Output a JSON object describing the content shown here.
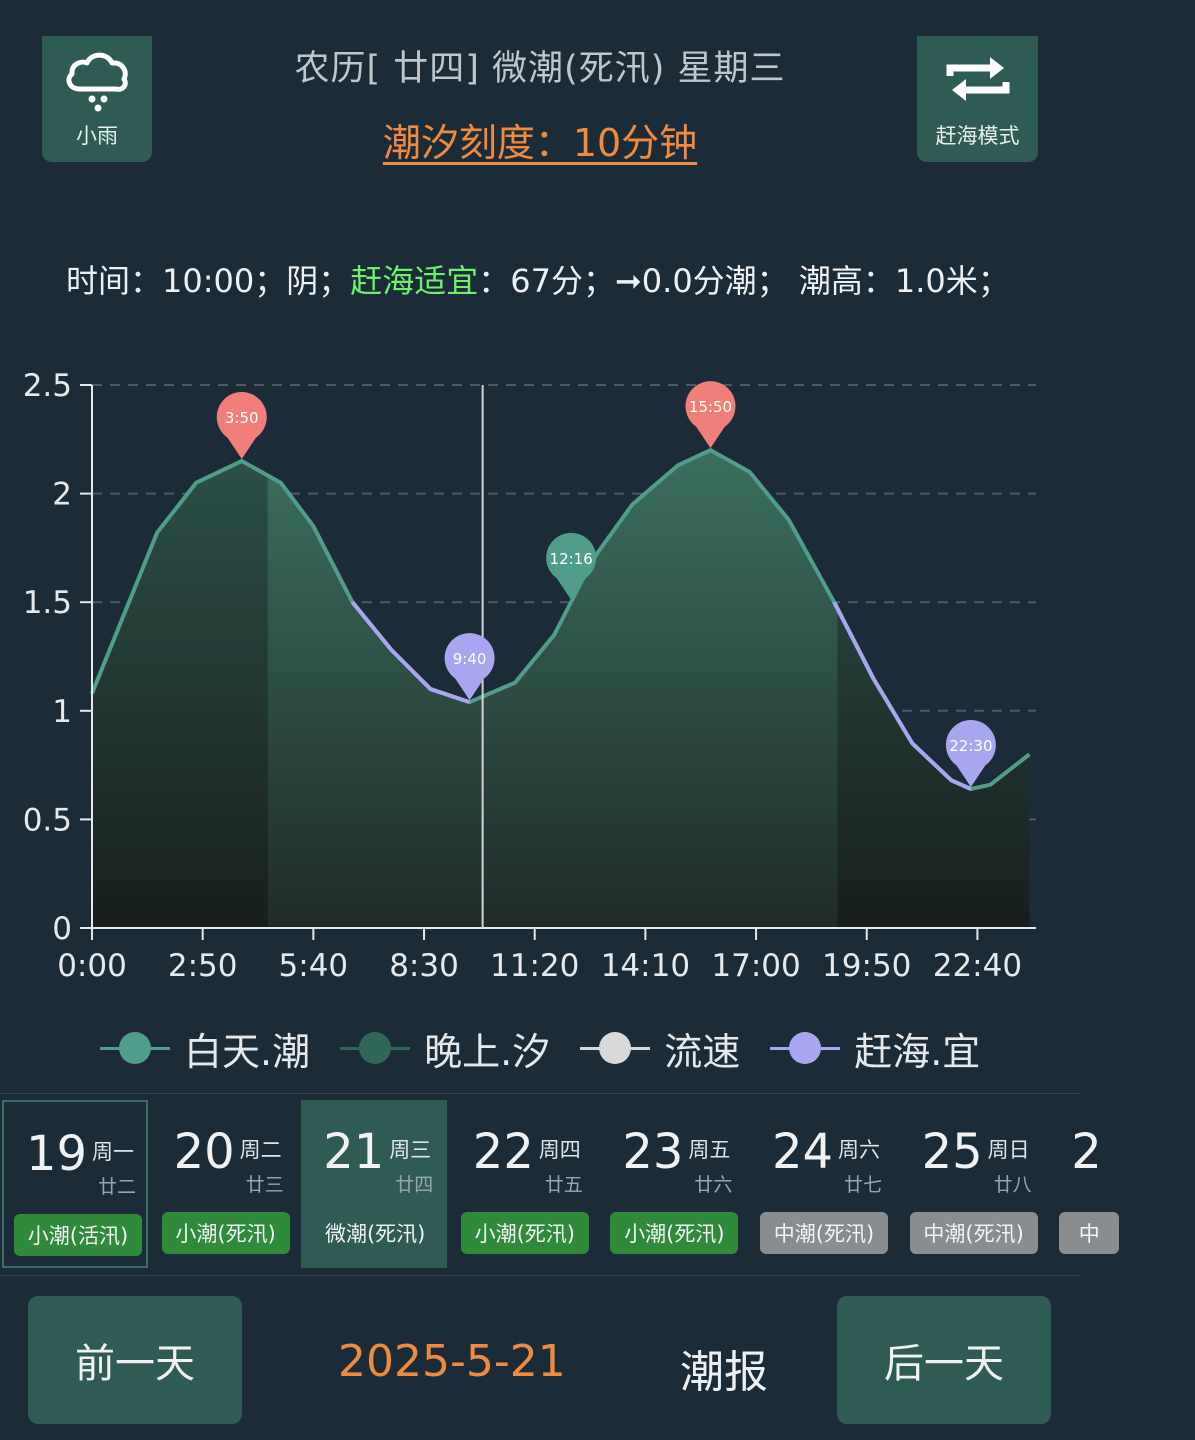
{
  "header": {
    "weather_label": "小雨",
    "weather_icon": "cloud-rain-icon",
    "title": "农历[ 廿四] 微潮(死汛) 星期三",
    "tide_scale": "潮汐刻度：10分钟",
    "mode_label": "赶海模式",
    "mode_icon": "repeat-arrows-icon"
  },
  "info": {
    "time_part": "时间：10:00；阴；",
    "suitable_label": "赶海适宜",
    "score_part": "：67分；➞0.0分潮；  潮高：1.0米；"
  },
  "chart_data": {
    "type": "area",
    "x_ticks": [
      "0:00",
      "2:50",
      "5:40",
      "8:30",
      "11:20",
      "14:10",
      "17:00",
      "19:50",
      "22:40"
    ],
    "y_ticks": [
      "0",
      "0.5",
      "1",
      "1.5",
      "2",
      "2.5"
    ],
    "ylim": [
      0,
      2.5
    ],
    "xlim_minutes": [
      0,
      1450
    ],
    "series": [
      {
        "name": "白天.潮",
        "points": [
          [
            "0:00",
            1.08
          ],
          [
            "0:50",
            1.45
          ],
          [
            "1:40",
            1.82
          ],
          [
            "2:40",
            2.05
          ],
          [
            "3:50",
            2.15
          ],
          [
            "4:50",
            2.05
          ],
          [
            "5:40",
            1.85
          ],
          [
            "6:40",
            1.5
          ],
          [
            "7:40",
            1.28
          ],
          [
            "8:40",
            1.1
          ],
          [
            "9:40",
            1.04
          ],
          [
            "10:50",
            1.13
          ],
          [
            "11:50",
            1.35
          ],
          [
            "12:50",
            1.7
          ],
          [
            "13:50",
            1.95
          ],
          [
            "15:00",
            2.13
          ],
          [
            "15:50",
            2.2
          ],
          [
            "16:50",
            2.1
          ],
          [
            "17:50",
            1.88
          ],
          [
            "19:00",
            1.5
          ],
          [
            "20:00",
            1.15
          ],
          [
            "21:00",
            0.85
          ],
          [
            "22:00",
            0.68
          ],
          [
            "22:30",
            0.64
          ],
          [
            "23:00",
            0.66
          ],
          [
            "24:00",
            0.8
          ]
        ]
      }
    ],
    "suitable_segments": [
      [
        "6:40",
        "9:40"
      ],
      [
        "19:00",
        "22:30"
      ]
    ],
    "night_ranges": [
      [
        "0:00",
        "4:30"
      ],
      [
        "19:05",
        "24:00"
      ]
    ],
    "markers": [
      {
        "time": "3:50",
        "label": "3:50",
        "type": "high"
      },
      {
        "time": "9:40",
        "label": "9:40",
        "type": "low"
      },
      {
        "time": "12:16",
        "label": "12:16",
        "type": "current"
      },
      {
        "time": "15:50",
        "label": "15:50",
        "type": "high"
      },
      {
        "time": "22:30",
        "label": "22:30",
        "type": "low"
      }
    ],
    "cursor_time": "10:00",
    "colors": {
      "high": "#ef7f78",
      "low": "#a9a6f0",
      "current": "#4f9d8a",
      "area": "#3a6b5c",
      "line": "#4f9d8a",
      "suitable": "#a9a6f0"
    },
    "grid": true
  },
  "legend": [
    {
      "label": "白天.潮",
      "color": "#4f9d8a"
    },
    {
      "label": "晚上.汐",
      "color": "#2f6658"
    },
    {
      "label": "流速",
      "color": "#d9d9d9"
    },
    {
      "label": "赶海.宜",
      "color": "#a9a6f0"
    }
  ],
  "days": [
    {
      "num": "19",
      "weekday": "周一",
      "lunar": "廿二",
      "tide": "小潮(活汛)",
      "badge_color": "#2f8a3a",
      "selected": false,
      "outlined": true
    },
    {
      "num": "20",
      "weekday": "周二",
      "lunar": "廿三",
      "tide": "小潮(死汛)",
      "badge_color": "#2f8a3a",
      "selected": false,
      "outlined": false
    },
    {
      "num": "21",
      "weekday": "周三",
      "lunar": "廿四",
      "tide": "微潮(死汛)",
      "badge_color": "#2e5b54",
      "selected": true,
      "outlined": false
    },
    {
      "num": "22",
      "weekday": "周四",
      "lunar": "廿五",
      "tide": "小潮(死汛)",
      "badge_color": "#2f8a3a",
      "selected": false,
      "outlined": false
    },
    {
      "num": "23",
      "weekday": "周五",
      "lunar": "廿六",
      "tide": "小潮(死汛)",
      "badge_color": "#2f8a3a",
      "selected": false,
      "outlined": false
    },
    {
      "num": "24",
      "weekday": "周六",
      "lunar": "廿七",
      "tide": "中潮(死汛)",
      "badge_color": "#8a8d90",
      "selected": false,
      "outlined": false
    },
    {
      "num": "25",
      "weekday": "周日",
      "lunar": "廿八",
      "tide": "中潮(死汛)",
      "badge_color": "#8a8d90",
      "selected": false,
      "outlined": false
    },
    {
      "num": "2",
      "weekday": "",
      "lunar": "",
      "tide": "中",
      "badge_color": "#8a8d90",
      "selected": false,
      "outlined": false
    }
  ],
  "footer": {
    "prev_label": "前一天",
    "date": "2025-5-21",
    "report_label": "潮报",
    "next_label": "后一天"
  }
}
